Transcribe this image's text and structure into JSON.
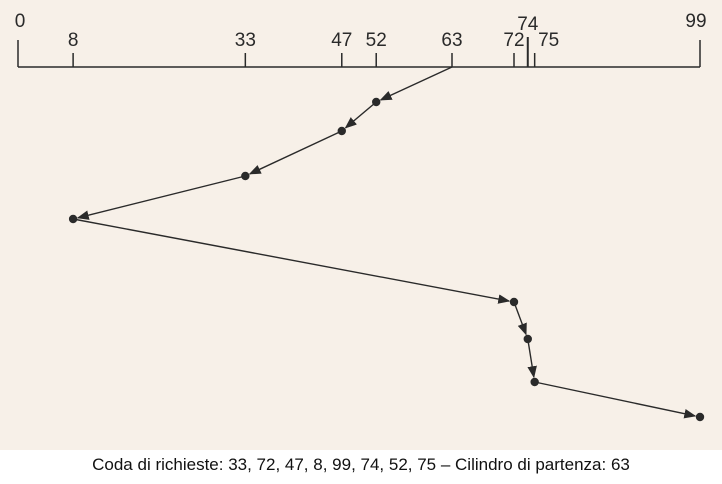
{
  "axis": {
    "min": 0,
    "max": 99,
    "ticks": [
      0,
      8,
      33,
      47,
      52,
      63,
      72,
      74,
      75,
      99
    ],
    "start_cylinder": 63
  },
  "service_order": [
    63,
    52,
    47,
    33,
    8,
    72,
    74,
    75,
    99
  ],
  "caption": "Coda di richieste: 33, 72, 47, 8, 99, 74, 52, 75 – Cilindro di partenza: 63",
  "colors": {
    "background": "#f7f0e8",
    "ink": "#2a2a2a"
  }
}
